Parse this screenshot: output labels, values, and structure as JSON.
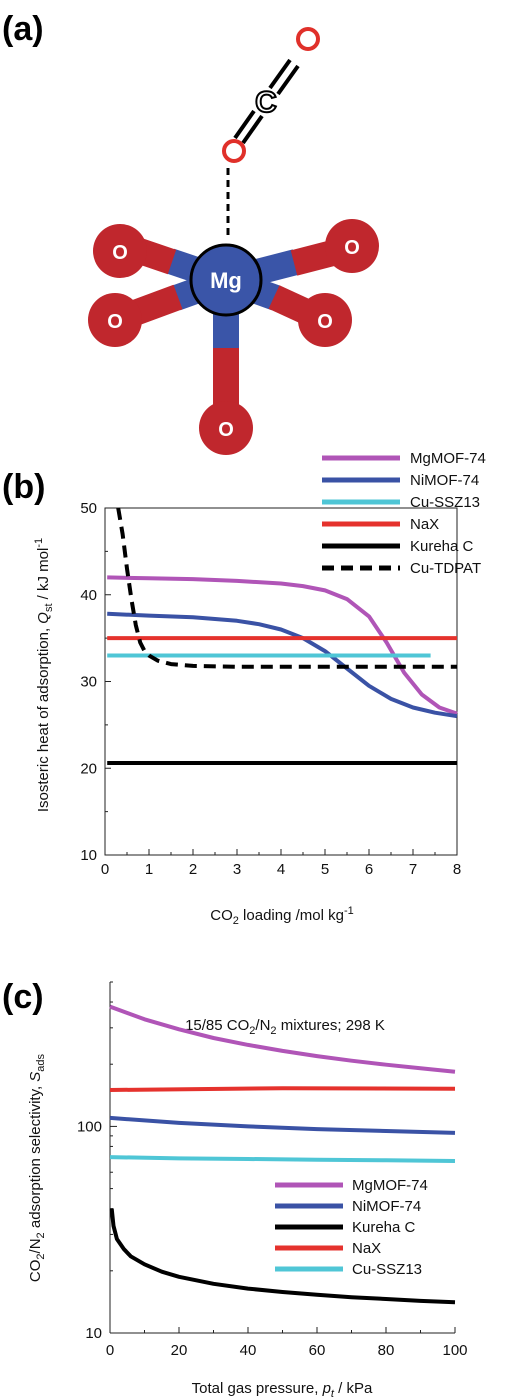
{
  "panels": {
    "a": "(a)",
    "b": "(b)",
    "c": "(c)"
  },
  "colors": {
    "mgmof": "#b055b7",
    "nimof": "#3a52a5",
    "cussz": "#4fc6d6",
    "nax": "#e5322d",
    "kureha": "#000000",
    "cutdpat": "#000000",
    "bond_red": "#c0272d",
    "mg_blue": "#3a55a8",
    "o_ring": "#e0302a"
  },
  "molecule": {
    "atoms": {
      "mg": "Mg",
      "o_upper_left": "O",
      "o_upper_right": "O",
      "o_mid_left": "O",
      "o_mid_right": "O",
      "o_bottom": "O",
      "c_co2": "C"
    }
  },
  "chart_data": [
    {
      "type": "line",
      "panel": "(b)",
      "xlabel": "CO2 loading /mol kg-1",
      "ylabel": "Isosteric heat of adsorption, Qst / kJ mol-1",
      "xlim": [
        0,
        8
      ],
      "ylim": [
        10,
        50
      ],
      "xticks": [
        0,
        1,
        2,
        3,
        4,
        5,
        6,
        7,
        8
      ],
      "yticks": [
        10,
        20,
        30,
        40,
        50
      ],
      "legend_position": "top-right",
      "series": [
        {
          "name": "MgMOF-74",
          "color": "#b055b7",
          "style": "solid",
          "x": [
            0.05,
            1,
            2,
            3,
            4,
            4.5,
            5,
            5.5,
            6,
            6.4,
            6.8,
            7.2,
            7.6,
            8
          ],
          "y": [
            42,
            41.9,
            41.8,
            41.6,
            41.3,
            41,
            40.5,
            39.5,
            37.5,
            34.5,
            31,
            28.5,
            27,
            26.3
          ]
        },
        {
          "name": "NiMOF-74",
          "color": "#3a52a5",
          "style": "solid",
          "x": [
            0.05,
            1,
            2,
            3,
            3.5,
            4,
            4.5,
            5,
            5.5,
            6,
            6.5,
            7,
            7.5,
            8
          ],
          "y": [
            37.8,
            37.6,
            37.4,
            37,
            36.6,
            36,
            35,
            33.5,
            31.5,
            29.5,
            28,
            27,
            26.4,
            26
          ]
        },
        {
          "name": "Cu-SSZ13",
          "color": "#4fc6d6",
          "style": "solid",
          "x": [
            0.05,
            7.4
          ],
          "y": [
            33,
            33
          ]
        },
        {
          "name": "NaX",
          "color": "#e5322d",
          "style": "solid",
          "x": [
            0.05,
            8
          ],
          "y": [
            35,
            35
          ]
        },
        {
          "name": "Kureha C",
          "color": "#000000",
          "style": "solid",
          "x": [
            0.05,
            8
          ],
          "y": [
            20.6,
            20.6
          ]
        },
        {
          "name": "Cu-TDPAT",
          "color": "#000000",
          "style": "dashed",
          "x": [
            0.3,
            0.4,
            0.5,
            0.6,
            0.7,
            0.8,
            0.9,
            1.0,
            1.2,
            1.5,
            2,
            3,
            5,
            8
          ],
          "y": [
            50,
            47,
            43,
            39.5,
            36.5,
            34.5,
            33.5,
            33,
            32.4,
            32,
            31.8,
            31.7,
            31.7,
            31.7
          ]
        }
      ]
    },
    {
      "type": "line",
      "panel": "(c)",
      "title": "15/85 CO2/N2 mixtures; 298 K",
      "xlabel": "Total gas pressure, pt / kPa",
      "ylabel": "CO2/N2 adsorption selectivity, Sads",
      "xlim": [
        0,
        100
      ],
      "ylim": [
        10,
        500
      ],
      "yscale": "log",
      "xticks": [
        0,
        20,
        40,
        60,
        80,
        100
      ],
      "yticks": [
        10,
        100
      ],
      "legend_position": "bottom-right",
      "series": [
        {
          "name": "MgMOF-74",
          "color": "#b055b7",
          "x": [
            0,
            10,
            20,
            30,
            40,
            50,
            60,
            70,
            80,
            90,
            100
          ],
          "y": [
            380,
            330,
            295,
            268,
            248,
            232,
            219,
            208,
            199,
            191,
            184
          ]
        },
        {
          "name": "NiMOF-74",
          "color": "#3a52a5",
          "x": [
            0,
            20,
            40,
            60,
            80,
            100
          ],
          "y": [
            110,
            104,
            100,
            97,
            95,
            93
          ]
        },
        {
          "name": "Kureha C",
          "color": "#000000",
          "x": [
            0.5,
            1,
            2,
            4,
            6,
            10,
            15,
            20,
            30,
            40,
            50,
            60,
            70,
            80,
            90,
            100
          ],
          "y": [
            40,
            33,
            28.5,
            25.5,
            23.5,
            21.5,
            19.8,
            18.7,
            17.3,
            16.4,
            15.8,
            15.3,
            14.9,
            14.6,
            14.3,
            14.1
          ]
        },
        {
          "name": "NaX",
          "color": "#e5322d",
          "x": [
            0,
            50,
            100
          ],
          "y": [
            150,
            153,
            152
          ]
        },
        {
          "name": "Cu-SSZ13",
          "color": "#4fc6d6",
          "x": [
            0,
            20,
            40,
            60,
            80,
            100
          ],
          "y": [
            71,
            70,
            69.5,
            69,
            68.5,
            68
          ]
        }
      ]
    }
  ]
}
